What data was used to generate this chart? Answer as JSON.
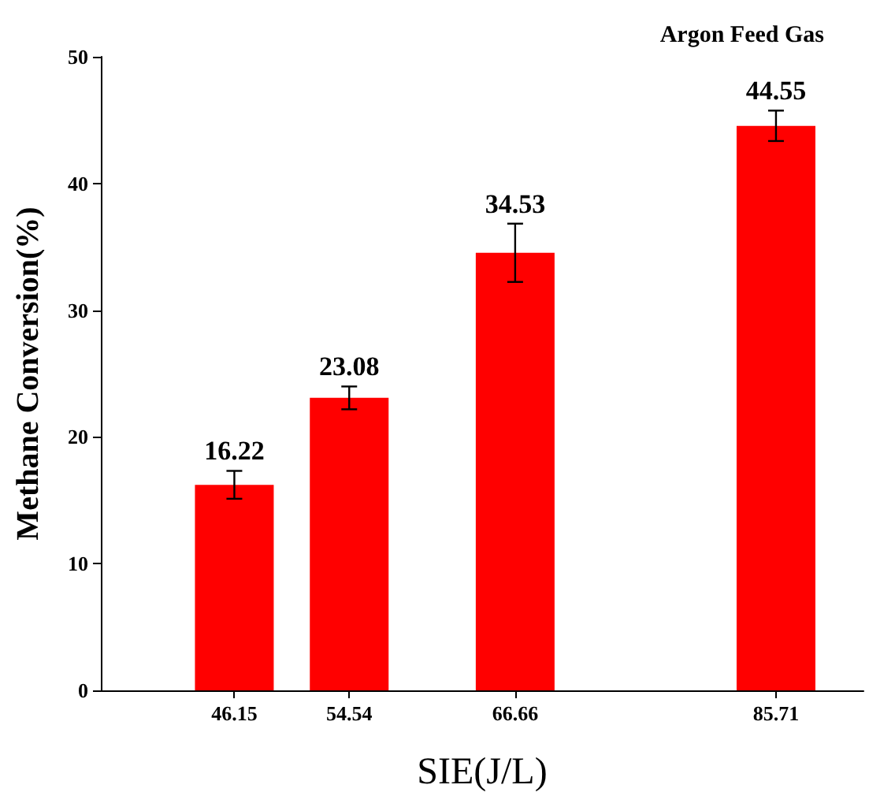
{
  "chart_data": {
    "type": "bar",
    "title": "Argon Feed Gas",
    "xlabel": "SIE(J/L)",
    "ylabel": "Methane Conversion(%)",
    "x": [
      46.15,
      54.54,
      66.66,
      85.71
    ],
    "values": [
      16.22,
      23.08,
      34.53,
      44.55
    ],
    "errors": [
      1.1,
      0.9,
      2.3,
      1.2
    ],
    "color": "#ff0000",
    "xlim": [
      36.4,
      92.1
    ],
    "xticks": [
      46.15,
      54.54,
      66.66,
      85.71
    ],
    "ylim": [
      0,
      50
    ],
    "yticks": [
      0,
      10,
      20,
      30,
      40,
      50
    ],
    "data_labels": true,
    "grid": false
  }
}
